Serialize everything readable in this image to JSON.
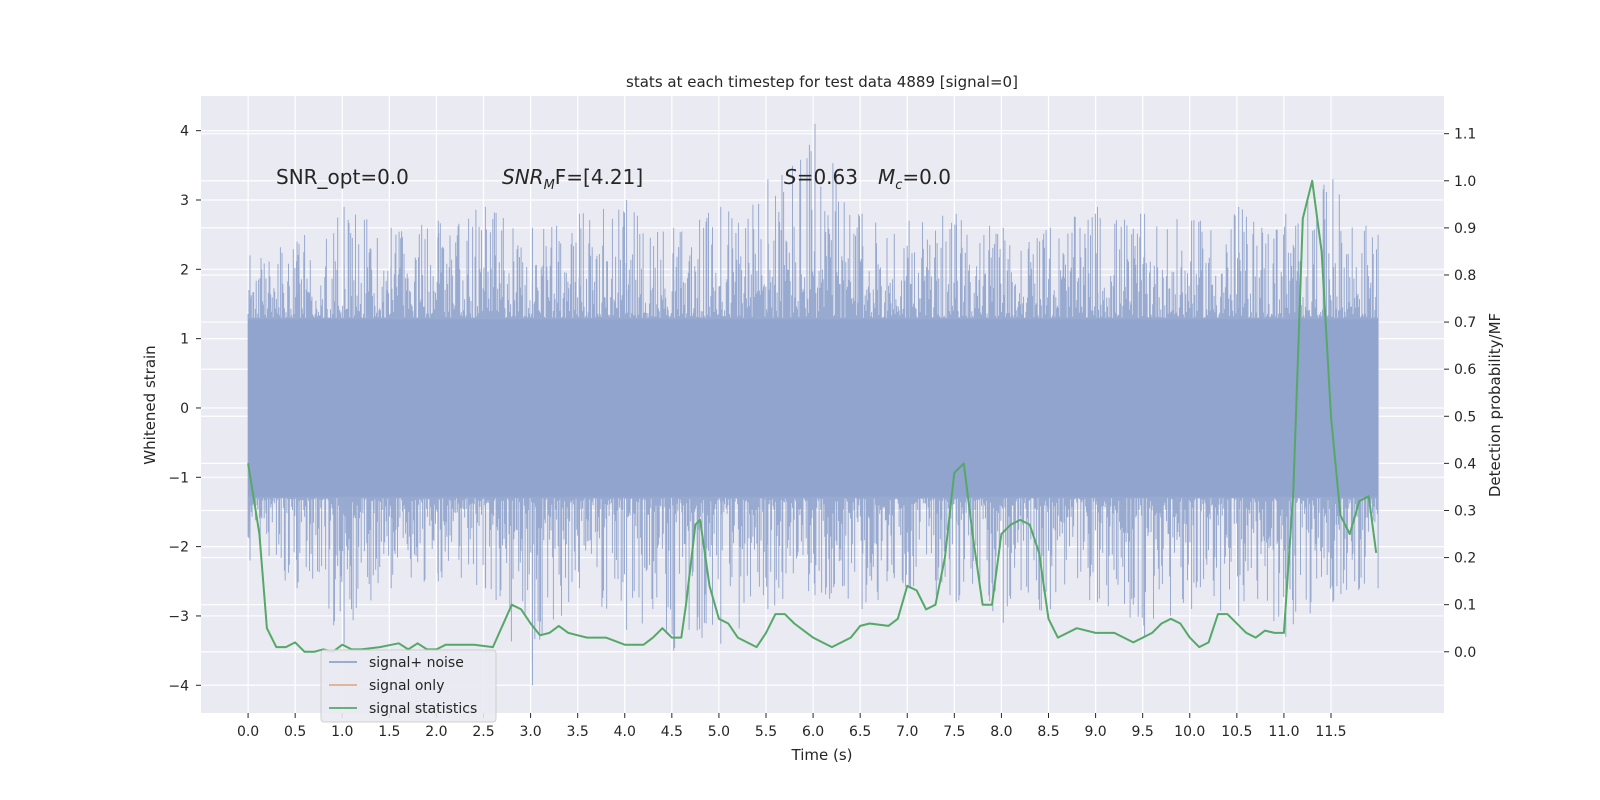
{
  "chart_data": {
    "type": "line",
    "title": "stats at each timestep for test data 4889 [signal=0]",
    "xlabel": "Time (s)",
    "ylabel_left": "Whitened strain",
    "ylabel_right": "Detection probability/MF",
    "xlim": [
      -0.5,
      12.7
    ],
    "ylim_left": [
      -4.4,
      4.5
    ],
    "ylim_right": [
      -0.13,
      1.18
    ],
    "x_ticks": [
      "0.0",
      "0.5",
      "1.0",
      "1.5",
      "2.0",
      "2.5",
      "3.0",
      "3.5",
      "4.0",
      "4.5",
      "5.0",
      "5.5",
      "6.0",
      "6.5",
      "7.0",
      "7.5",
      "8.0",
      "8.5",
      "9.0",
      "9.5",
      "10.0",
      "10.5",
      "11.0",
      "11.5"
    ],
    "y_left_ticks": [
      "4",
      "3",
      "2",
      "1",
      "0",
      "−1",
      "−2",
      "−3",
      "−4"
    ],
    "y_right_ticks": [
      "1.1",
      "1.0",
      "0.9",
      "0.8",
      "0.7",
      "0.6",
      "0.5",
      "0.4",
      "0.3",
      "0.2",
      "0.1",
      "0.0"
    ],
    "grid": true,
    "legend_position": "lower-left",
    "colors": {
      "background": "#eaeaf2",
      "grid": "#ffffff",
      "noise": "#8fa3cc",
      "signal": "#dd8452",
      "stat": "#55a868"
    },
    "annotations": [
      {
        "prefix": "SNR_opt=0.0",
        "math": "",
        "sub": "",
        "suffix": ""
      },
      {
        "prefix": "",
        "math": "SNR",
        "sub": "M",
        "suffix": "F=[4.21]"
      },
      {
        "prefix": "",
        "math": "S",
        "sub": "",
        "suffix": "=0.63"
      },
      {
        "prefix": "",
        "math": "M",
        "sub": "c",
        "suffix": "=0.0"
      }
    ],
    "series": [
      {
        "name": "signal+ noise",
        "axis": "left",
        "x_range": [
          0.0,
          12.0
        ],
        "envelope": {
          "x": [
            0.0,
            0.5,
            1.0,
            1.5,
            2.0,
            2.5,
            3.0,
            3.5,
            4.0,
            4.5,
            5.0,
            5.5,
            6.0,
            6.5,
            7.0,
            7.5,
            8.0,
            8.5,
            9.0,
            9.5,
            10.0,
            10.5,
            11.0,
            11.5,
            12.0
          ],
          "upper": [
            2.2,
            2.4,
            2.9,
            2.6,
            2.7,
            2.9,
            2.6,
            2.8,
            3.0,
            2.6,
            2.9,
            3.3,
            4.1,
            2.8,
            2.7,
            2.8,
            2.6,
            2.6,
            2.9,
            2.8,
            2.7,
            2.9,
            2.8,
            3.3,
            2.5
          ],
          "lower": [
            -2.2,
            -2.6,
            -3.4,
            -2.6,
            -2.5,
            -2.6,
            -4.0,
            -2.6,
            -3.2,
            -3.5,
            -3.4,
            -2.9,
            -2.7,
            -2.9,
            -2.6,
            -2.8,
            -3.1,
            -2.9,
            -2.8,
            -3.3,
            -2.9,
            -3.0,
            -3.3,
            -2.8,
            -2.6
          ]
        }
      },
      {
        "name": "signal only",
        "axis": "left",
        "x": [],
        "y": []
      },
      {
        "name": "signal statistics",
        "axis": "right",
        "x": [
          0.0,
          0.12,
          0.2,
          0.3,
          0.4,
          0.5,
          0.6,
          0.7,
          0.8,
          0.9,
          1.0,
          1.1,
          1.2,
          1.4,
          1.6,
          1.7,
          1.8,
          1.9,
          2.0,
          2.1,
          2.2,
          2.4,
          2.6,
          2.8,
          2.9,
          3.0,
          3.1,
          3.2,
          3.3,
          3.4,
          3.5,
          3.6,
          3.8,
          4.0,
          4.2,
          4.3,
          4.4,
          4.5,
          4.6,
          4.65,
          4.75,
          4.8,
          4.9,
          5.0,
          5.1,
          5.2,
          5.4,
          5.5,
          5.6,
          5.7,
          5.8,
          6.0,
          6.2,
          6.4,
          6.5,
          6.6,
          6.8,
          6.9,
          7.0,
          7.1,
          7.2,
          7.3,
          7.4,
          7.5,
          7.6,
          7.7,
          7.8,
          7.9,
          8.0,
          8.1,
          8.2,
          8.3,
          8.4,
          8.5,
          8.6,
          8.8,
          9.0,
          9.2,
          9.4,
          9.6,
          9.7,
          9.8,
          9.9,
          10.0,
          10.1,
          10.2,
          10.3,
          10.4,
          10.6,
          10.7,
          10.8,
          10.9,
          11.0,
          11.1,
          11.2,
          11.3,
          11.4,
          11.5,
          11.6,
          11.7,
          11.8,
          11.9,
          11.98
        ],
        "y": [
          0.4,
          0.25,
          0.05,
          0.01,
          0.01,
          0.02,
          0.0,
          0.0,
          0.005,
          0.0,
          0.015,
          0.005,
          0.005,
          0.01,
          0.018,
          0.005,
          0.018,
          0.005,
          0.005,
          0.015,
          0.015,
          0.015,
          0.01,
          0.1,
          0.09,
          0.06,
          0.035,
          0.04,
          0.055,
          0.04,
          0.035,
          0.03,
          0.03,
          0.015,
          0.015,
          0.03,
          0.05,
          0.03,
          0.03,
          0.1,
          0.27,
          0.28,
          0.14,
          0.07,
          0.06,
          0.03,
          0.01,
          0.04,
          0.08,
          0.08,
          0.06,
          0.03,
          0.01,
          0.03,
          0.055,
          0.06,
          0.055,
          0.07,
          0.14,
          0.13,
          0.09,
          0.1,
          0.2,
          0.38,
          0.4,
          0.24,
          0.1,
          0.1,
          0.25,
          0.27,
          0.28,
          0.27,
          0.21,
          0.07,
          0.03,
          0.05,
          0.04,
          0.04,
          0.02,
          0.04,
          0.06,
          0.07,
          0.06,
          0.03,
          0.01,
          0.02,
          0.08,
          0.08,
          0.04,
          0.03,
          0.045,
          0.04,
          0.04,
          0.34,
          0.92,
          1.0,
          0.85,
          0.5,
          0.29,
          0.25,
          0.32,
          0.33,
          0.21
        ]
      }
    ]
  }
}
